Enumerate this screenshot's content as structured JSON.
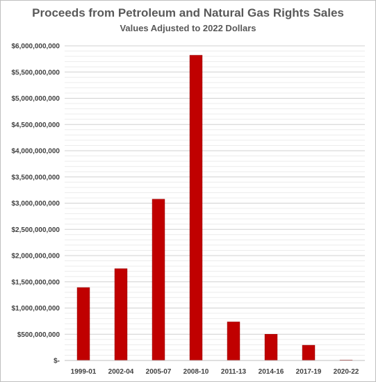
{
  "chart_data": {
    "type": "bar",
    "title": "Proceeds from Petroleum and Natural Gas Rights Sales",
    "subtitle": "Values Adjusted to 2022 Dollars",
    "xlabel": "",
    "ylabel": "",
    "categories": [
      "1999-01",
      "2002-04",
      "2005-07",
      "2008-10",
      "2011-13",
      "2014-16",
      "2017-19",
      "2020-22"
    ],
    "values": [
      1390000000,
      1750000000,
      3075000000,
      5820000000,
      735000000,
      500000000,
      290000000,
      8000000
    ],
    "ylim": [
      0,
      6000000000
    ],
    "y_ticks": [
      0,
      500000000,
      1000000000,
      1500000000,
      2000000000,
      2500000000,
      3000000000,
      3500000000,
      4000000000,
      4500000000,
      5000000000,
      5500000000,
      6000000000
    ],
    "y_tick_labels": [
      "$-",
      "$500,000,000",
      "$1,000,000,000",
      "$1,500,000,000",
      "$2,000,000,000",
      "$2,500,000,000",
      "$3,000,000,000",
      "$3,500,000,000",
      "$4,000,000,000",
      "$4,500,000,000",
      "$5,000,000,000",
      "$5,500,000,000",
      "$6,000,000,000"
    ],
    "grid": true,
    "legend": "none",
    "colors": {
      "bar": "#c00000",
      "bar_edge": "#9b0000",
      "grid": "#d9d9d9",
      "text": "#404040"
    }
  }
}
